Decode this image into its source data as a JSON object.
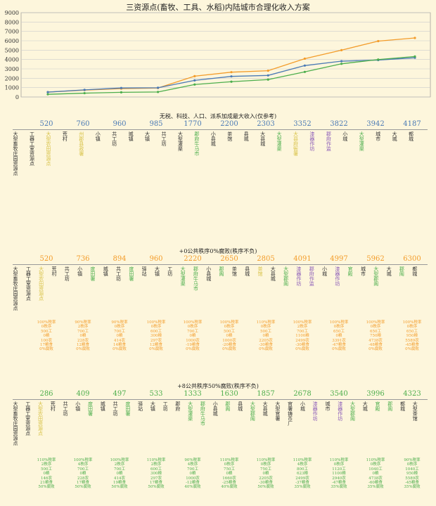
{
  "title": "三资源点(畜牧、工具、水稻)内陆城市合理化收入方案",
  "colors": {
    "orange": "#f39c2a",
    "blue": "#4a7ab5",
    "green": "#4cae4c",
    "grid": "#cccccc",
    "purple": "#8a5ab8",
    "yellow": "#d8c248"
  },
  "chart_data": {
    "type": "line",
    "x": [
      1,
      2,
      3,
      4,
      5,
      6,
      7,
      8,
      9,
      10,
      11
    ],
    "ylim": [
      0,
      9000
    ],
    "yticks": [
      "0",
      "1000",
      "2000",
      "3000",
      "4000",
      "5000",
      "6000",
      "7000",
      "8000",
      "9000"
    ],
    "grid": true,
    "series": [
      {
        "color": "orange",
        "values": [
          520,
          736,
          894,
          960,
          2220,
          2650,
          2805,
          4091,
          4997,
          5962,
          6300
        ]
      },
      {
        "color": "blue",
        "values": [
          520,
          760,
          960,
          985,
          1770,
          2200,
          2303,
          3352,
          3822,
          3942,
          4187
        ]
      },
      {
        "color": "green",
        "values": [
          286,
          409,
          497,
          533,
          1333,
          1630,
          1857,
          2678,
          3540,
          3996,
          4323
        ]
      }
    ]
  },
  "sections": [
    {
      "subtitle": "无税、科技、人口、派系加成最大收入(仅参考)",
      "color": "blue",
      "totals": [
        "520",
        "760",
        "960",
        "985",
        "1770",
        "2200",
        "2303",
        "3352",
        "3822",
        "3942",
        "4187"
      ],
      "buildings": [
        {
          "t": "大型畜牧庄园资源点",
          "c": "#333"
        },
        {
          "t": "工器工室资源点",
          "c": "#333"
        },
        {
          "t": "大型农田资源点",
          "c": "yellow"
        },
        {
          "t": "荒村",
          "c": "#333"
        },
        {
          "t": "州郡县政署",
          "c": "yellow"
        },
        {
          "t": "小镇",
          "c": "#333"
        },
        {
          "t": "共工坊",
          "c": "#333"
        },
        {
          "t": "城镇",
          "c": "#333"
        },
        {
          "t": "大镇",
          "c": "#333"
        },
        {
          "t": "共工坊",
          "c": "#333"
        },
        {
          "t": "大型灌渠",
          "c": "#333"
        },
        {
          "t": "郡府牛马市",
          "c": "green"
        },
        {
          "t": "小县城",
          "c": "#333"
        },
        {
          "t": "茶馆",
          "c": "#333"
        },
        {
          "t": "县城",
          "c": "#333"
        },
        {
          "t": "大县城",
          "c": "#333"
        },
        {
          "t": "大型灌渠",
          "c": "green"
        },
        {
          "t": "大县府衙署",
          "c": "yellow"
        },
        {
          "t": "漆器作坊",
          "c": "purple"
        },
        {
          "t": "郡府作监",
          "c": "purple"
        },
        {
          "t": "小城",
          "c": "#333"
        },
        {
          "t": "大型灌渠",
          "c": "green"
        },
        {
          "t": "城市",
          "c": "#333"
        },
        {
          "t": "大城",
          "c": "#333"
        },
        {
          "t": "都城",
          "c": "#333"
        }
      ],
      "policies": []
    },
    {
      "subtitle": "+0公共秩序0%腐败(秩序不负)",
      "color": "orange",
      "totals": [
        "520",
        "736",
        "894",
        "960",
        "2220",
        "2650",
        "2805",
        "4091",
        "4997",
        "5962",
        "6300"
      ],
      "buildings": [
        {
          "t": "大型畜牧庄园资源点",
          "c": "#333"
        },
        {
          "t": "工器工室资源点",
          "c": "#333"
        },
        {
          "t": "大型农田资源点",
          "c": "yellow"
        },
        {
          "t": "荒村",
          "c": "#333"
        },
        {
          "t": "共工坊",
          "c": "#333"
        },
        {
          "t": "小镇",
          "c": "#333"
        },
        {
          "t": "度田署",
          "c": "green"
        },
        {
          "t": "城镇",
          "c": "#333"
        },
        {
          "t": "共工坊",
          "c": "#333"
        },
        {
          "t": "度田署",
          "c": "green"
        },
        {
          "t": "驿站",
          "c": "#333"
        },
        {
          "t": "大镇",
          "c": "#333"
        },
        {
          "t": "工坊",
          "c": "#333"
        },
        {
          "t": "大型灌渠",
          "c": "green"
        },
        {
          "t": "郡府牛马市",
          "c": "green"
        },
        {
          "t": "小县城",
          "c": "#333"
        },
        {
          "t": "郡阁",
          "c": "green"
        },
        {
          "t": "茶馆",
          "c": "#333"
        },
        {
          "t": "县城",
          "c": "#333"
        },
        {
          "t": "茶馆",
          "c": "yellow"
        },
        {
          "t": "大县城",
          "c": "#333"
        },
        {
          "t": "大型郡阁",
          "c": "green"
        },
        {
          "t": "漆器作坊",
          "c": "purple"
        },
        {
          "t": "郡府作监",
          "c": "purple"
        },
        {
          "t": "小城",
          "c": "#333"
        },
        {
          "t": "漆器作坊",
          "c": "purple"
        },
        {
          "t": "官殿",
          "c": "green"
        },
        {
          "t": "城市",
          "c": "#333"
        },
        {
          "t": "大型郡阁",
          "c": "green"
        },
        {
          "t": "大城",
          "c": "#333"
        },
        {
          "t": "郡阁",
          "c": "green"
        },
        {
          "t": "都城",
          "c": "#333"
        }
      ],
      "policies": [
        [
          "100%税率",
          "0秩序",
          "500工",
          "0粮",
          "100农",
          "17粮食",
          "0%腐败"
        ],
        [
          "90%税率",
          "2秩序",
          "700工",
          "0粮",
          "228农",
          "12粮食",
          "0%腐败"
        ],
        [
          "90%税率",
          "0秩序",
          "700工",
          "0粮",
          "414农",
          "14粮食",
          "0%腐败"
        ],
        [
          "100%税率",
          "0秩序",
          "600工",
          "300粮",
          "297农",
          "12粮食",
          "0%腐败"
        ],
        [
          "100%税率",
          "0秩序",
          "700工",
          "0粮",
          "1000农",
          "-19粮食",
          "0%腐败"
        ],
        [
          "100%税率",
          "0秩序",
          "500工",
          "0粮",
          "1000农",
          "-20粮食",
          "0%腐败"
        ],
        [
          "110%税率",
          "0秩序",
          "500工",
          "0粮",
          "2205农",
          "-30粮食",
          "0%腐败"
        ],
        [
          "100%税率",
          "2秩序",
          "700工",
          "1100粮",
          "2499农",
          "-30粮食",
          "0%腐败"
        ],
        [
          "100%税率",
          "0秩序",
          "650工",
          "0粮",
          "3391农",
          "-47粮食",
          "0%腐败"
        ],
        [
          "100%税率",
          "0秩序",
          "650工",
          "750粮",
          "4738农",
          "-48粮食",
          "0%腐败"
        ],
        [
          "100%税率",
          "0秩序",
          "650工",
          "950粮",
          "5589农",
          "-45粮食",
          "0%腐败"
        ]
      ]
    },
    {
      "subtitle": "+8公共秩序50%腐败(秩序不负)",
      "color": "green",
      "totals": [
        "286",
        "409",
        "497",
        "533",
        "1333",
        "1630",
        "1857",
        "2678",
        "3540",
        "3996",
        "4323"
      ],
      "buildings": [
        {
          "t": "大型畜牧庄园资源点",
          "c": "#333"
        },
        {
          "t": "工器工室资源点",
          "c": "#333"
        },
        {
          "t": "大型农田资源点",
          "c": "yellow"
        },
        {
          "t": "荒村",
          "c": "#333"
        },
        {
          "t": "共工坊",
          "c": "#333"
        },
        {
          "t": "小镇",
          "c": "#333"
        },
        {
          "t": "度田署",
          "c": "green"
        },
        {
          "t": "城镇",
          "c": "#333"
        },
        {
          "t": "共工坊",
          "c": "#333"
        },
        {
          "t": "度田署",
          "c": "green"
        },
        {
          "t": "驿站",
          "c": "#333"
        },
        {
          "t": "大镇",
          "c": "#333"
        },
        {
          "t": "工坊",
          "c": "#333"
        },
        {
          "t": "郡府",
          "c": "#333"
        },
        {
          "t": "大型灌渠",
          "c": "green"
        },
        {
          "t": "郡府牛马市",
          "c": "green"
        },
        {
          "t": "小县城",
          "c": "#333"
        },
        {
          "t": "郡阁",
          "c": "green"
        },
        {
          "t": "县城",
          "c": "#333"
        },
        {
          "t": "大型郡阁",
          "c": "green"
        },
        {
          "t": "大县城",
          "c": "#333"
        },
        {
          "t": "大型官署",
          "c": "#333"
        },
        {
          "t": "官署铸币厂",
          "c": "#333"
        },
        {
          "t": "小城",
          "c": "#333"
        },
        {
          "t": "漆器作坊",
          "c": "purple"
        },
        {
          "t": "城市",
          "c": "#333"
        },
        {
          "t": "漆器作坊",
          "c": "purple"
        },
        {
          "t": "大型郡阁",
          "c": "green"
        },
        {
          "t": "大城",
          "c": "#333"
        },
        {
          "t": "官殿",
          "c": "green"
        },
        {
          "t": "郡阁",
          "c": "green"
        },
        {
          "t": "都城",
          "c": "#333"
        },
        {
          "t": "大型茶馆",
          "c": "#333"
        }
      ],
      "policies": [
        [
          "110%税率",
          "2秩序",
          "500工",
          "0粮",
          "146农",
          "21粮食",
          "50%腐败"
        ],
        [
          "100%税率",
          "4秩序",
          "700工",
          "0粮",
          "228农",
          "17粮食",
          "50%腐败"
        ],
        [
          "100%税率",
          "2秩序",
          "700工",
          "0粮",
          "414农",
          "19粮食",
          "50%腐败"
        ],
        [
          "110%税率",
          "2秩序",
          "600工",
          "300粮",
          "297农",
          "17粮食",
          "50%腐败"
        ],
        [
          "90%税率",
          "4秩序",
          "700工",
          "0粮",
          "1000农",
          "-12粮食",
          "40%腐败"
        ],
        [
          "110%税率",
          "0秩序",
          "750工",
          "0粮",
          "1660农",
          "-25粮食",
          "40%腐败"
        ],
        [
          "110%税率",
          "0秩序",
          "750工",
          "0粮",
          "2205农",
          "-30粮食",
          "50%腐败"
        ],
        [
          "110%税率",
          "4秩序",
          "800工",
          "623粮",
          "2499农",
          "-37粮食",
          "35%腐败"
        ],
        [
          "110%税率",
          "0秩序",
          "1120工",
          "1100粮",
          "2940农",
          "-47粮食",
          "35%腐败"
        ],
        [
          "110%税率",
          "0秩序",
          "1040工",
          "0粮",
          "4738农",
          "-60粮食",
          "35%腐败"
        ],
        [
          "90%税率",
          "0秩序",
          "1040工",
          "950粮",
          "5589农",
          "-45粮食",
          "35%腐败"
        ]
      ]
    }
  ]
}
